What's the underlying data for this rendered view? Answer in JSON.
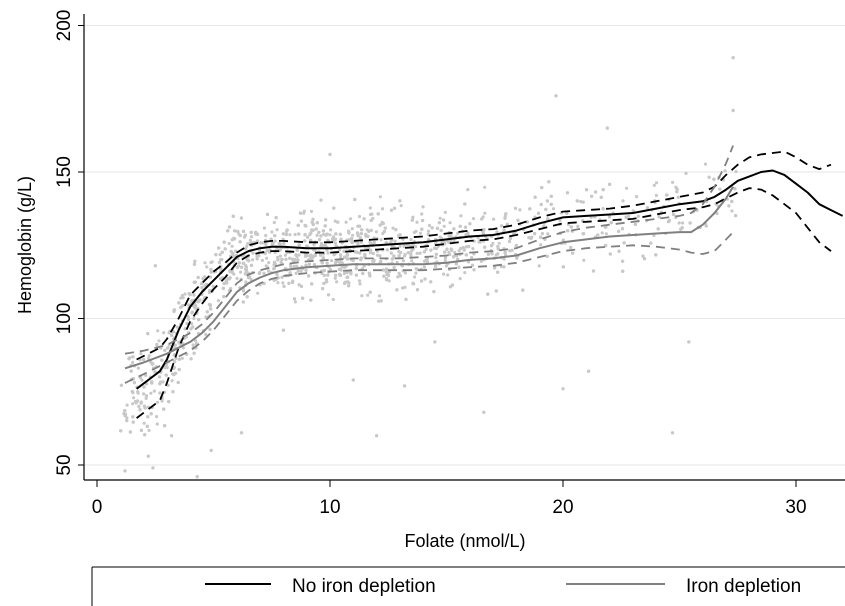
{
  "chart_data": {
    "type": "scatter",
    "title": "",
    "xlabel": "Folate (nmol/L)",
    "ylabel": "Hemoglobin (g/L)",
    "xlim": [
      0,
      32
    ],
    "ylim": [
      45,
      200
    ],
    "xticks": [
      "0",
      "10",
      "20",
      "30"
    ],
    "yticks": [
      "50",
      "100",
      "150",
      "200"
    ],
    "grid": "horizontal",
    "legend_position": "bottom",
    "colors": {
      "scatter": "#c8c8c8",
      "no_iron_depletion": "#000000",
      "iron_depletion": "#808080"
    },
    "scatter_description_points": [
      [
        1.2,
        48
      ],
      [
        2.2,
        53
      ],
      [
        2.4,
        49
      ],
      [
        1.8,
        70
      ],
      [
        2.5,
        118
      ],
      [
        3.2,
        60
      ],
      [
        4.3,
        46
      ],
      [
        4.9,
        55
      ],
      [
        6.2,
        61
      ],
      [
        11,
        79
      ],
      [
        12,
        60
      ],
      [
        13.2,
        77
      ],
      [
        16.6,
        68
      ],
      [
        19.7,
        176
      ],
      [
        21.1,
        82
      ],
      [
        21.9,
        165
      ],
      [
        24.7,
        61
      ],
      [
        25.4,
        92
      ],
      [
        27.3,
        189
      ],
      [
        27.3,
        171
      ],
      [
        10,
        156
      ],
      [
        20,
        76
      ],
      [
        14.5,
        92
      ],
      [
        8,
        96
      ]
    ],
    "series": [
      {
        "name": "No iron depletion",
        "color": "#000000",
        "x": [
          1.7,
          2.2,
          2.7,
          3.0,
          3.5,
          4.0,
          4.5,
          5.0,
          5.5,
          6.0,
          6.5,
          7.0,
          7.5,
          8.0,
          9.0,
          10.0,
          11.0,
          12.0,
          13.0,
          14.0,
          15.0,
          16.0,
          17.0,
          18.0,
          19.0,
          20.0,
          21.0,
          22.0,
          23.0,
          24.0,
          25.0,
          26.0,
          26.5,
          27.0,
          27.5,
          28.0,
          28.5,
          29.0,
          29.5,
          30.0,
          30.5,
          31.0,
          31.5,
          32.0
        ],
        "y": [
          76,
          79,
          82,
          86,
          96,
          104,
          109,
          113,
          117,
          121,
          123,
          124,
          124.5,
          124.5,
          124,
          124,
          124.5,
          125,
          125.5,
          126,
          127,
          128,
          128.5,
          130,
          132.5,
          134.5,
          135,
          135.5,
          136,
          137.5,
          139,
          140,
          141.5,
          144,
          147,
          148.5,
          150,
          150.5,
          149,
          146,
          143,
          139,
          137,
          135
        ]
      },
      {
        "name": "No iron depletion (upper CI)",
        "color": "#000000",
        "dashed": true,
        "x": [
          1.7,
          2.2,
          2.7,
          3.0,
          3.5,
          4.0,
          4.5,
          5.0,
          5.5,
          6.0,
          6.5,
          7.0,
          7.5,
          8.0,
          9.0,
          10.0,
          11.0,
          12.0,
          13.0,
          14.0,
          15.0,
          16.0,
          17.0,
          18.0,
          19.0,
          20.0,
          21.0,
          22.0,
          23.0,
          24.0,
          25.0,
          26.0,
          26.5,
          27.0,
          27.5,
          28.0,
          28.5,
          29.0,
          29.5,
          30.0,
          30.5,
          31.0,
          31.5
        ],
        "y": [
          86,
          88,
          90,
          93,
          100,
          108,
          112,
          116,
          119,
          122.5,
          125,
          126,
          126.5,
          126.5,
          126,
          126,
          126.5,
          127,
          127.5,
          128,
          129,
          130,
          130.5,
          132,
          134.5,
          136.5,
          137,
          137.5,
          138.5,
          140,
          141.5,
          143,
          145,
          149,
          152.5,
          155,
          156,
          156.5,
          157,
          155,
          152.5,
          151,
          152.5
        ]
      },
      {
        "name": "No iron depletion (lower CI)",
        "color": "#000000",
        "dashed": true,
        "x": [
          1.7,
          2.2,
          2.7,
          3.0,
          3.5,
          4.0,
          4.5,
          5.0,
          5.5,
          6.0,
          6.5,
          7.0,
          7.5,
          8.0,
          9.0,
          10.0,
          11.0,
          12.0,
          13.0,
          14.0,
          15.0,
          16.0,
          17.0,
          18.0,
          19.0,
          20.0,
          21.0,
          22.0,
          23.0,
          24.0,
          25.0,
          26.0,
          26.5,
          27.0,
          27.5,
          28.0,
          28.5,
          29.0,
          29.5,
          30.0,
          30.5,
          31.0,
          31.5
        ],
        "y": [
          66,
          69,
          72,
          78,
          90,
          99,
          105,
          110,
          114,
          119,
          121.5,
          122.5,
          123,
          123,
          122.5,
          122.5,
          123,
          123.5,
          124,
          124.5,
          125.5,
          126.5,
          127,
          128.5,
          130.5,
          132.5,
          133,
          133.5,
          134,
          135.5,
          137,
          138,
          139,
          141,
          143,
          144.5,
          144,
          142,
          139,
          136,
          131,
          126,
          123
        ]
      },
      {
        "name": "Iron depletion",
        "color": "#808080",
        "x": [
          1.2,
          2.0,
          3.0,
          4.0,
          4.5,
          5.0,
          5.5,
          6.0,
          6.5,
          7.0,
          7.5,
          8.0,
          9.0,
          10.0,
          11.0,
          12.0,
          13.0,
          14.0,
          15.0,
          16.0,
          17.0,
          18.0,
          19.0,
          20.0,
          21.0,
          22.0,
          23.0,
          24.0,
          25.0,
          25.5,
          26.0,
          26.5,
          27.0,
          27.3
        ],
        "y": [
          83,
          85,
          88,
          92,
          95,
          99,
          104,
          109,
          112,
          114,
          115.5,
          116.5,
          117.5,
          118,
          118.5,
          118.5,
          118.5,
          118.5,
          119,
          120,
          120.5,
          121.5,
          124,
          126,
          127,
          128,
          128.5,
          129,
          129.5,
          129.5,
          132,
          136,
          141,
          145
        ]
      },
      {
        "name": "Iron depletion (upper CI)",
        "color": "#808080",
        "dashed": true,
        "x": [
          1.2,
          2.0,
          3.0,
          4.0,
          4.5,
          5.0,
          5.5,
          6.0,
          6.5,
          7.0,
          7.5,
          8.0,
          9.0,
          10.0,
          11.0,
          12.0,
          13.0,
          14.0,
          15.0,
          16.0,
          17.0,
          18.0,
          19.0,
          20.0,
          21.0,
          22.0,
          23.0,
          24.0,
          25.0,
          25.5,
          26.0,
          26.5,
          27.0,
          27.3
        ],
        "y": [
          88,
          89,
          91,
          95,
          98,
          102,
          107,
          112,
          115,
          116.5,
          117.5,
          118.5,
          119.5,
          120,
          120.5,
          120.5,
          120.5,
          121,
          121.5,
          122.5,
          123,
          124,
          127,
          129.5,
          131,
          132,
          133,
          134,
          135,
          136,
          139,
          145,
          153,
          159
        ]
      },
      {
        "name": "Iron depletion (lower CI)",
        "color": "#808080",
        "dashed": true,
        "x": [
          1.2,
          2.0,
          3.0,
          4.0,
          4.5,
          5.0,
          5.5,
          6.0,
          6.5,
          7.0,
          7.5,
          8.0,
          9.0,
          10.0,
          11.0,
          12.0,
          13.0,
          14.0,
          15.0,
          16.0,
          17.0,
          18.0,
          19.0,
          20.0,
          21.0,
          22.0,
          23.0,
          24.0,
          25.0,
          25.5,
          26.0,
          26.5,
          27.0,
          27.3
        ],
        "y": [
          78,
          81,
          85,
          89,
          92,
          96,
          101,
          106,
          109.5,
          112,
          113.5,
          114.5,
          115.5,
          116,
          116.5,
          116.5,
          116.5,
          116.5,
          117,
          117.5,
          118,
          119,
          121,
          123,
          124,
          124.5,
          125,
          124.5,
          123.5,
          122.5,
          122,
          123,
          127,
          129.5
        ]
      }
    ],
    "legend": [
      {
        "label": "No iron depletion",
        "color": "#000000"
      },
      {
        "label": "Iron depletion",
        "color": "#808080"
      }
    ]
  }
}
